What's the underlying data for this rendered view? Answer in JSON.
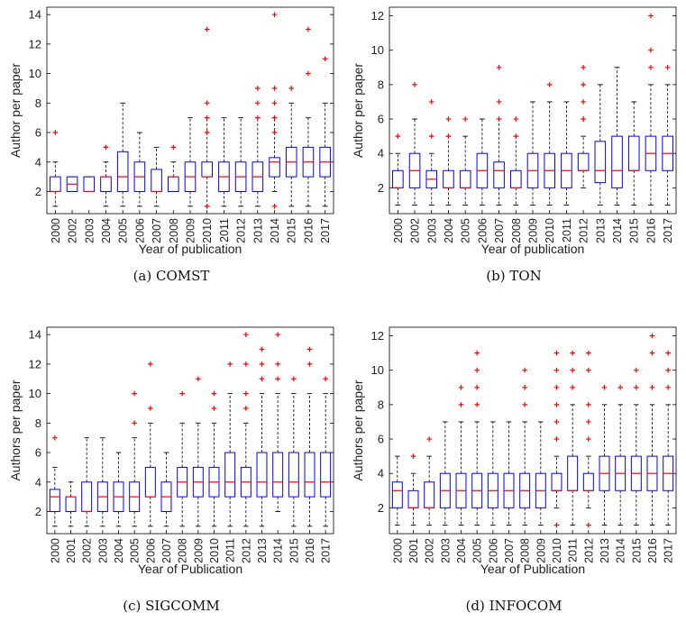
{
  "chart_data": [
    {
      "type": "box",
      "caption": "(a) COMST",
      "xlabel": "Year of publication",
      "ylabel": "Author per paper",
      "ylim": [
        0.5,
        14.5
      ],
      "yticks": [
        2,
        4,
        6,
        8,
        10,
        12,
        14
      ],
      "grid": false,
      "categories": [
        "2000",
        "2002",
        "2003",
        "2004",
        "2005",
        "2006",
        "2007",
        "2008",
        "2009",
        "2010",
        "2011",
        "2012",
        "2013",
        "2014",
        "2015",
        "2016",
        "2017"
      ],
      "boxes": [
        {
          "min": 1,
          "q1": 2,
          "median": 2,
          "q3": 3,
          "max": 4,
          "outliers": [
            6
          ]
        },
        {
          "min": 2,
          "q1": 2,
          "median": 2.5,
          "q3": 3,
          "max": 3,
          "outliers": []
        },
        {
          "min": 2,
          "q1": 2,
          "median": 2,
          "q3": 3,
          "max": 3,
          "outliers": []
        },
        {
          "min": 1,
          "q1": 2,
          "median": 3,
          "q3": 3,
          "max": 4,
          "outliers": [
            5
          ]
        },
        {
          "min": 1,
          "q1": 2,
          "median": 3,
          "q3": 4.7,
          "max": 8,
          "outliers": []
        },
        {
          "min": 1,
          "q1": 2,
          "median": 3,
          "q3": 4,
          "max": 6,
          "outliers": []
        },
        {
          "min": 1,
          "q1": 2,
          "median": 2,
          "q3": 3.5,
          "max": 5,
          "outliers": []
        },
        {
          "min": 2,
          "q1": 2,
          "median": 3,
          "q3": 3,
          "max": 4,
          "outliers": [
            5
          ]
        },
        {
          "min": 1,
          "q1": 2,
          "median": 3,
          "q3": 4,
          "max": 7,
          "outliers": []
        },
        {
          "min": 1,
          "q1": 3,
          "median": 3,
          "q3": 4,
          "max": 7,
          "outliers": [
            13,
            8,
            7,
            6,
            1
          ]
        },
        {
          "min": 1,
          "q1": 2,
          "median": 3,
          "q3": 4,
          "max": 7,
          "outliers": []
        },
        {
          "min": 1,
          "q1": 2,
          "median": 3,
          "q3": 4,
          "max": 7,
          "outliers": []
        },
        {
          "min": 1,
          "q1": 2,
          "median": 3,
          "q3": 4,
          "max": 7,
          "outliers": [
            9,
            8,
            7
          ]
        },
        {
          "min": 2,
          "q1": 3,
          "median": 4,
          "q3": 4.3,
          "max": 7,
          "outliers": [
            14,
            9,
            8,
            7,
            6,
            1
          ]
        },
        {
          "min": 1,
          "q1": 3,
          "median": 4,
          "q3": 5,
          "max": 8,
          "outliers": [
            9
          ]
        },
        {
          "min": 1,
          "q1": 3,
          "median": 4,
          "q3": 5,
          "max": 7,
          "outliers": [
            13,
            10
          ]
        },
        {
          "min": 1,
          "q1": 3,
          "median": 4,
          "q3": 5,
          "max": 8,
          "outliers": [
            11
          ]
        }
      ]
    },
    {
      "type": "box",
      "caption": "(b) TON",
      "xlabel": "Year of publication",
      "ylabel": "Author per paper",
      "ylim": [
        0.5,
        12.5
      ],
      "yticks": [
        2,
        4,
        6,
        8,
        10,
        12
      ],
      "grid": false,
      "categories": [
        "2000",
        "2002",
        "2003",
        "2004",
        "2005",
        "2006",
        "2007",
        "2008",
        "2009",
        "2010",
        "2011",
        "2012",
        "2013",
        "2014",
        "2015",
        "2016",
        "2017"
      ],
      "boxes": [
        {
          "min": 1,
          "q1": 2,
          "median": 2,
          "q3": 3,
          "max": 4,
          "outliers": [
            5
          ]
        },
        {
          "min": 1,
          "q1": 2,
          "median": 3,
          "q3": 4,
          "max": 6,
          "outliers": [
            8
          ]
        },
        {
          "min": 1,
          "q1": 2,
          "median": 2.5,
          "q3": 3,
          "max": 4,
          "outliers": [
            7,
            5
          ]
        },
        {
          "min": 1,
          "q1": 2,
          "median": 2,
          "q3": 3,
          "max": 5,
          "outliers": [
            6,
            5
          ]
        },
        {
          "min": 1,
          "q1": 2,
          "median": 2,
          "q3": 3,
          "max": 5,
          "outliers": [
            6
          ]
        },
        {
          "min": 1,
          "q1": 2,
          "median": 3,
          "q3": 4,
          "max": 6,
          "outliers": []
        },
        {
          "min": 1,
          "q1": 2,
          "median": 3,
          "q3": 3.5,
          "max": 6,
          "outliers": [
            9,
            7,
            6
          ]
        },
        {
          "min": 1,
          "q1": 2,
          "median": 2,
          "q3": 3,
          "max": 5,
          "outliers": [
            6,
            5
          ]
        },
        {
          "min": 1,
          "q1": 2,
          "median": 3,
          "q3": 4,
          "max": 7,
          "outliers": []
        },
        {
          "min": 1,
          "q1": 2,
          "median": 3,
          "q3": 4,
          "max": 7,
          "outliers": [
            8
          ]
        },
        {
          "min": 1,
          "q1": 2,
          "median": 3,
          "q3": 4,
          "max": 7,
          "outliers": []
        },
        {
          "min": 2,
          "q1": 3,
          "median": 3,
          "q3": 4,
          "max": 5,
          "outliers": [
            9,
            8,
            7,
            6,
            6
          ]
        },
        {
          "min": 1,
          "q1": 2.3,
          "median": 3,
          "q3": 4.7,
          "max": 8,
          "outliers": []
        },
        {
          "min": 1,
          "q1": 2,
          "median": 3,
          "q3": 5,
          "max": 9,
          "outliers": []
        },
        {
          "min": 1,
          "q1": 3,
          "median": 3,
          "q3": 5,
          "max": 7,
          "outliers": []
        },
        {
          "min": 1,
          "q1": 3,
          "median": 4,
          "q3": 5,
          "max": 8,
          "outliers": [
            12,
            10,
            9
          ]
        },
        {
          "min": 1,
          "q1": 3,
          "median": 4,
          "q3": 5,
          "max": 8,
          "outliers": [
            9
          ]
        }
      ]
    },
    {
      "type": "box",
      "caption": "(c) SIGCOMM",
      "xlabel": "Year of Publication",
      "ylabel": "Authors per paper",
      "ylim": [
        0.5,
        14.5
      ],
      "yticks": [
        2,
        4,
        6,
        8,
        10,
        12,
        14
      ],
      "grid": false,
      "categories": [
        "2000",
        "2001",
        "2002",
        "2003",
        "2004",
        "2005",
        "2006",
        "2007",
        "2008",
        "2009",
        "2010",
        "2011",
        "2012",
        "2013",
        "2014",
        "2015",
        "2016",
        "2017"
      ],
      "boxes": [
        {
          "min": 1,
          "q1": 2,
          "median": 3,
          "q3": 3.5,
          "max": 5,
          "outliers": [
            7
          ]
        },
        {
          "min": 1,
          "q1": 2,
          "median": 3,
          "q3": 3,
          "max": 4,
          "outliers": []
        },
        {
          "min": 1,
          "q1": 2,
          "median": 2,
          "q3": 4,
          "max": 7,
          "outliers": []
        },
        {
          "min": 1,
          "q1": 2,
          "median": 3,
          "q3": 4,
          "max": 7,
          "outliers": []
        },
        {
          "min": 1,
          "q1": 2,
          "median": 3,
          "q3": 4,
          "max": 6,
          "outliers": []
        },
        {
          "min": 1,
          "q1": 2,
          "median": 3,
          "q3": 4,
          "max": 7,
          "outliers": [
            10,
            8
          ]
        },
        {
          "min": 1,
          "q1": 3,
          "median": 3,
          "q3": 5,
          "max": 8,
          "outliers": [
            12,
            9
          ]
        },
        {
          "min": 1,
          "q1": 2,
          "median": 3,
          "q3": 4,
          "max": 6,
          "outliers": []
        },
        {
          "min": 1,
          "q1": 3,
          "median": 4,
          "q3": 5,
          "max": 8,
          "outliers": [
            10
          ]
        },
        {
          "min": 1,
          "q1": 3,
          "median": 4,
          "q3": 5,
          "max": 8,
          "outliers": [
            11
          ]
        },
        {
          "min": 1,
          "q1": 3,
          "median": 4,
          "q3": 5,
          "max": 8,
          "outliers": [
            10,
            9
          ]
        },
        {
          "min": 1,
          "q1": 3,
          "median": 4,
          "q3": 6,
          "max": 10,
          "outliers": [
            12
          ]
        },
        {
          "min": 1,
          "q1": 3,
          "median": 4,
          "q3": 5,
          "max": 8,
          "outliers": [
            14,
            12,
            10,
            9
          ]
        },
        {
          "min": 1,
          "q1": 3,
          "median": 4,
          "q3": 6,
          "max": 10,
          "outliers": [
            13,
            12,
            11
          ]
        },
        {
          "min": 2,
          "q1": 3,
          "median": 4,
          "q3": 6,
          "max": 10,
          "outliers": [
            14,
            12,
            11
          ]
        },
        {
          "min": 1,
          "q1": 3,
          "median": 4,
          "q3": 6,
          "max": 10,
          "outliers": [
            11
          ]
        },
        {
          "min": 1,
          "q1": 3,
          "median": 4,
          "q3": 6,
          "max": 10,
          "outliers": [
            13,
            12
          ]
        },
        {
          "min": 1,
          "q1": 3,
          "median": 4,
          "q3": 6,
          "max": 10,
          "outliers": [
            11
          ]
        }
      ]
    },
    {
      "type": "box",
      "caption": "(d) INFOCOM",
      "xlabel": "Year of Publication",
      "ylabel": "Authors per paper",
      "ylim": [
        0.5,
        12.5
      ],
      "yticks": [
        2,
        4,
        6,
        8,
        10,
        12
      ],
      "grid": false,
      "categories": [
        "2000",
        "2001",
        "2002",
        "2003",
        "2004",
        "2005",
        "2006",
        "2007",
        "2008",
        "2009",
        "2010",
        "2011",
        "2012",
        "2013",
        "2014",
        "2015",
        "2016",
        "2017"
      ],
      "boxes": [
        {
          "min": 1,
          "q1": 2,
          "median": 3,
          "q3": 3.5,
          "max": 5,
          "outliers": []
        },
        {
          "min": 1,
          "q1": 2,
          "median": 2,
          "q3": 3,
          "max": 4,
          "outliers": [
            5
          ]
        },
        {
          "min": 1,
          "q1": 2,
          "median": 2,
          "q3": 3.5,
          "max": 5,
          "outliers": [
            6
          ]
        },
        {
          "min": 1,
          "q1": 2,
          "median": 3,
          "q3": 4,
          "max": 7,
          "outliers": []
        },
        {
          "min": 1,
          "q1": 2,
          "median": 3,
          "q3": 4,
          "max": 7,
          "outliers": [
            9,
            8
          ]
        },
        {
          "min": 1,
          "q1": 2,
          "median": 3,
          "q3": 4,
          "max": 7,
          "outliers": [
            11,
            10,
            9,
            8
          ]
        },
        {
          "min": 1,
          "q1": 2,
          "median": 3,
          "q3": 4,
          "max": 7,
          "outliers": []
        },
        {
          "min": 1,
          "q1": 2,
          "median": 3,
          "q3": 4,
          "max": 7,
          "outliers": []
        },
        {
          "min": 1,
          "q1": 2,
          "median": 3,
          "q3": 4,
          "max": 7,
          "outliers": [
            10,
            9,
            8
          ]
        },
        {
          "min": 1,
          "q1": 2,
          "median": 3,
          "q3": 4,
          "max": 7,
          "outliers": []
        },
        {
          "min": 2,
          "q1": 3,
          "median": 3,
          "q3": 4,
          "max": 5,
          "outliers": [
            11,
            10,
            9,
            8,
            7,
            6,
            1
          ]
        },
        {
          "min": 1,
          "q1": 3,
          "median": 3,
          "q3": 5,
          "max": 8,
          "outliers": [
            11,
            10,
            9
          ]
        },
        {
          "min": 2,
          "q1": 3,
          "median": 3,
          "q3": 4,
          "max": 5,
          "outliers": [
            11,
            10,
            8,
            7,
            6,
            1
          ]
        },
        {
          "min": 1,
          "q1": 3,
          "median": 4,
          "q3": 5,
          "max": 8,
          "outliers": [
            9
          ]
        },
        {
          "min": 1,
          "q1": 3,
          "median": 4,
          "q3": 5,
          "max": 8,
          "outliers": [
            9
          ]
        },
        {
          "min": 1,
          "q1": 3,
          "median": 4,
          "q3": 5,
          "max": 8,
          "outliers": [
            10,
            9
          ]
        },
        {
          "min": 1,
          "q1": 3,
          "median": 4,
          "q3": 5,
          "max": 8,
          "outliers": [
            12,
            11,
            9
          ]
        },
        {
          "min": 1,
          "q1": 3,
          "median": 4,
          "q3": 5,
          "max": 8,
          "outliers": [
            11,
            10,
            9
          ]
        }
      ]
    }
  ],
  "colors": {
    "box": "#0000ff",
    "median": "#ff0000",
    "outlier": "#ff0000",
    "whisker": "#000000",
    "axis": "#000000"
  }
}
